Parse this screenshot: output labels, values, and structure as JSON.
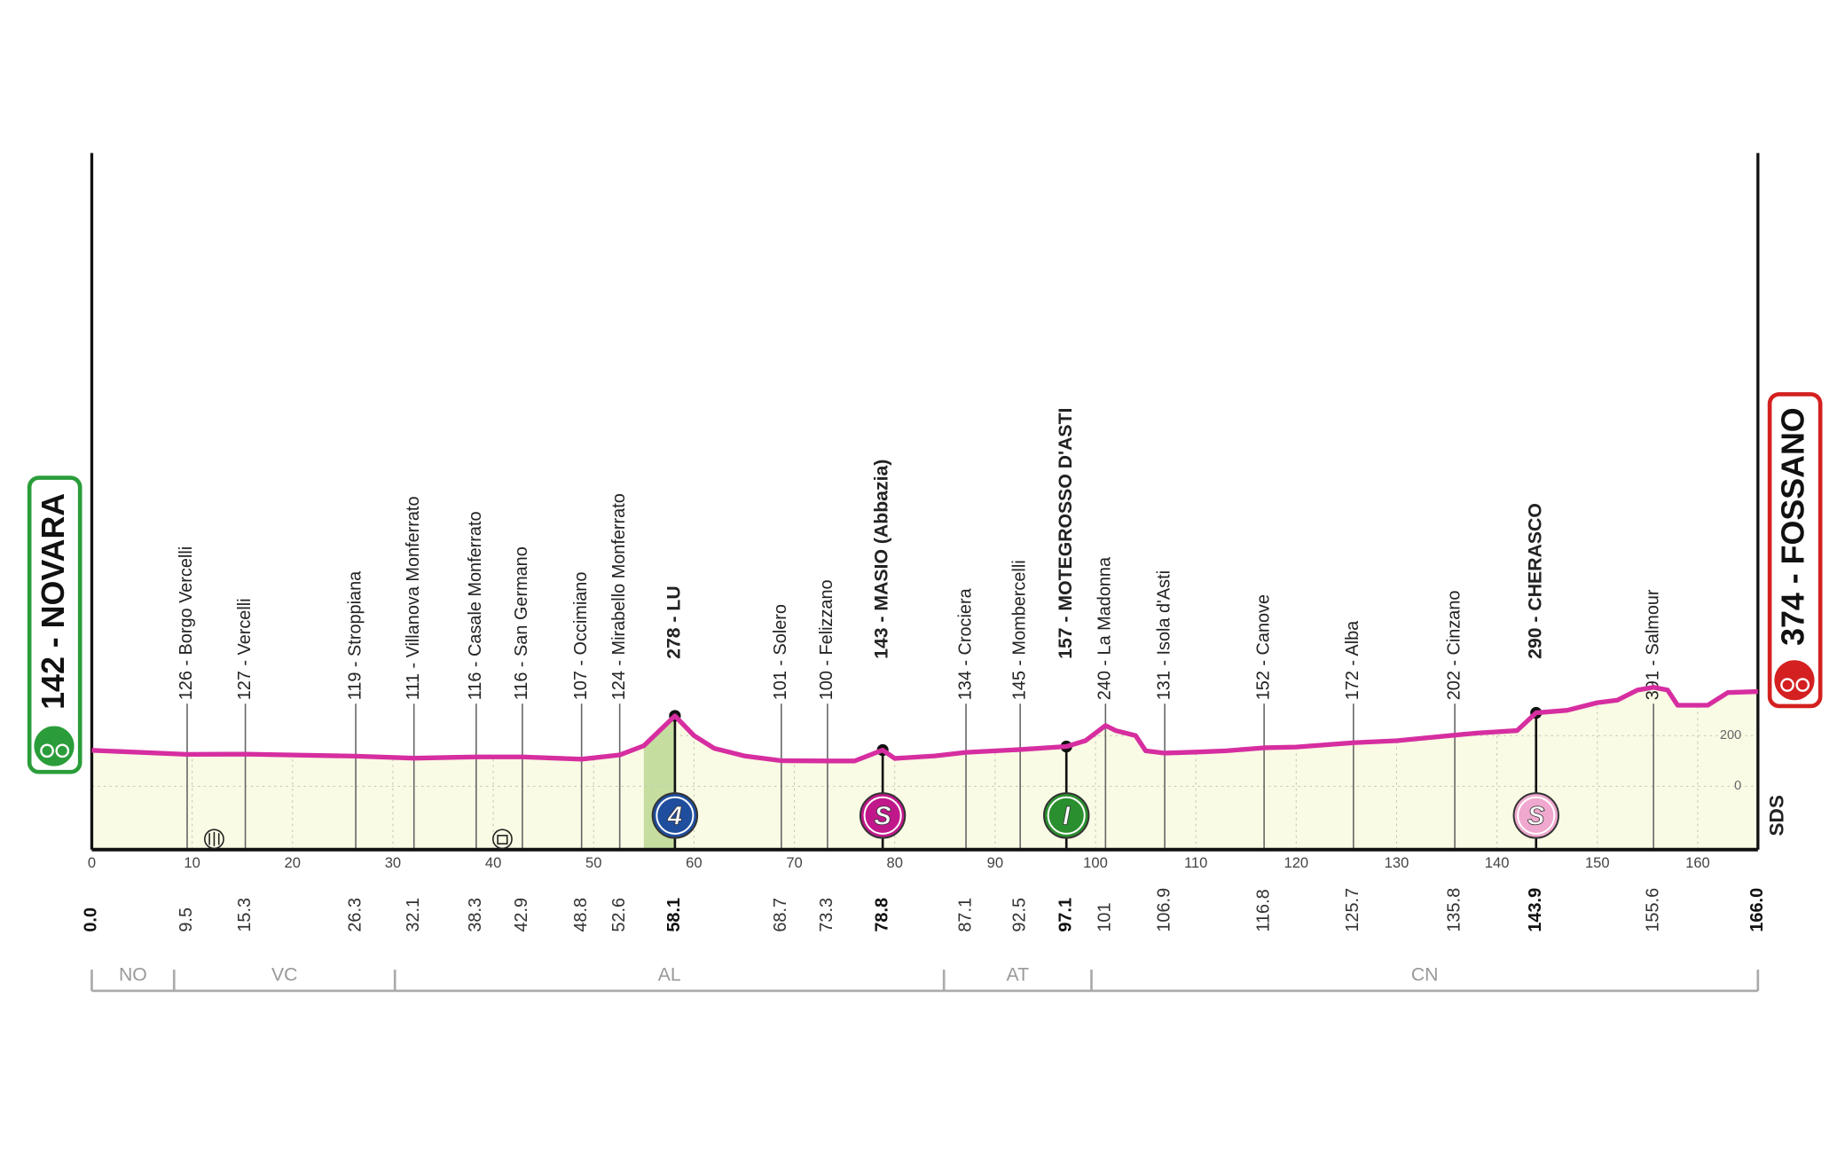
{
  "chart_data": {
    "type": "area",
    "color": "#d62ea0",
    "fill": "#fafbe4",
    "xlim": [
      0,
      166
    ],
    "ylim": [
      -250,
      2500
    ],
    "xticks": [
      0,
      10,
      20,
      30,
      40,
      50,
      60,
      70,
      80,
      90,
      100,
      110,
      120,
      130,
      140,
      150,
      160
    ],
    "yticks": [
      0,
      200
    ],
    "grid": true,
    "x": [
      0,
      9.5,
      15.3,
      26.3,
      32.1,
      38.3,
      42.9,
      48.8,
      52.6,
      55,
      58.1,
      60,
      62,
      65,
      68.7,
      73.3,
      76,
      78.8,
      80,
      84,
      87.1,
      92.5,
      97.1,
      99,
      101,
      102,
      104,
      105,
      106.9,
      110,
      113,
      116.8,
      120,
      125.7,
      130,
      135.8,
      138,
      142,
      143.9,
      147,
      150,
      152,
      154,
      155.6,
      157,
      158,
      160,
      161,
      163,
      166
    ],
    "values": [
      142,
      126,
      127,
      119,
      111,
      116,
      116,
      107,
      124,
      160,
      278,
      200,
      150,
      120,
      101,
      100,
      100,
      143,
      110,
      120,
      134,
      145,
      157,
      180,
      240,
      220,
      200,
      140,
      131,
      135,
      140,
      152,
      155,
      172,
      180,
      202,
      210,
      220,
      290,
      300,
      330,
      340,
      380,
      391,
      380,
      320,
      320,
      320,
      370,
      374
    ],
    "climb": {
      "from": 55,
      "to": 58.1,
      "color": "#c5dea0"
    },
    "waypoints": [
      {
        "name": "142 - NOVARA",
        "km": {
          "value": 0,
          "label": "0.0"
        },
        "role": "start",
        "color": "#2a9d3a"
      },
      {
        "name": "126 - Borgo Vercelli",
        "km": 9.5
      },
      {
        "name": "127 - Vercelli",
        "km": 15.3
      },
      {
        "name": "119 - Stroppiana",
        "km": 26.3
      },
      {
        "name": "111 - Villanova Monferrato",
        "km": 32.1
      },
      {
        "name": "116 - Casale Monferrato",
        "km": 38.3
      },
      {
        "name": "116 - San Germano",
        "km": 42.9
      },
      {
        "name": "107 - Occimiano",
        "km": 48.8
      },
      {
        "name": "124 - Mirabello Monferrato",
        "km": 52.6
      },
      {
        "name": "278 - LU",
        "km": 58.1,
        "bold": true,
        "marker": {
          "label": "4",
          "color": "#1f4e9e"
        }
      },
      {
        "name": "101 - Solero",
        "km": 68.7
      },
      {
        "name": "100 - Felizzano",
        "km": 73.3
      },
      {
        "name": "143 - MASIO (Abbazia)",
        "km": 78.8,
        "bold": true,
        "marker": {
          "label": "S",
          "color": "#c0188a"
        }
      },
      {
        "name": "134 - Crociera",
        "km": 87.1
      },
      {
        "name": "145 - Mombercelli",
        "km": 92.5
      },
      {
        "name": "157 - MOTEGROSSO D'ASTI",
        "km": 97.1,
        "bold": true,
        "marker": {
          "label": "I",
          "color": "#2a8f2e"
        }
      },
      {
        "name": "240 - La Madonna",
        "km": 101.0
      },
      {
        "name": "131 - Isola d'Asti",
        "km": 106.9
      },
      {
        "name": "152 - Canove",
        "km": 116.8
      },
      {
        "name": "172 - Alba",
        "km": 125.7
      },
      {
        "name": "202 - Cinzano",
        "km": 135.8
      },
      {
        "name": "290 - CHERASCO",
        "km": 143.9,
        "bold": true,
        "marker": {
          "label": "S",
          "color": "#f0a8cf"
        }
      },
      {
        "name": "391 - Salmour",
        "km": 155.6
      },
      {
        "name": "374 - FOSSANO",
        "km": {
          "value": 166,
          "label": "166.0"
        },
        "role": "finish",
        "color": "#d42020"
      }
    ],
    "provinces": [
      {
        "name": "NO",
        "from": 0,
        "to": 8.2
      },
      {
        "name": "VC",
        "from": 8.2,
        "to": 30.2
      },
      {
        "name": "AL",
        "from": 30.2,
        "to": 84.9
      },
      {
        "name": "AT",
        "from": 84.9,
        "to": 99.6
      },
      {
        "name": "CN",
        "from": 99.6,
        "to": 166
      }
    ],
    "sponsor": "SDS"
  }
}
